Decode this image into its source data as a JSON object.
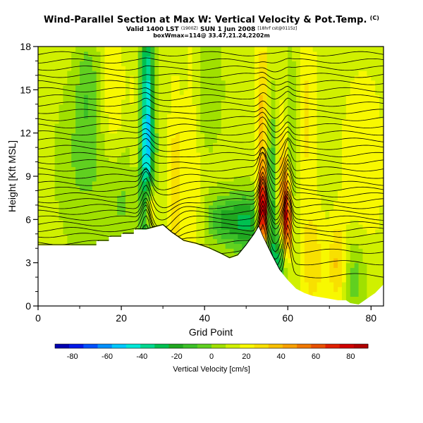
{
  "title": {
    "main": "Wind-Parallel Section at Max W: Vertical Velocity & Pot.Temp.",
    "copyright": "(C)",
    "valid": "Valid 1400 LST",
    "valid_utc": "(1900Z)",
    "valid_date": "SUN 1 Jun 2008",
    "valid_run": "[18hrf cst@0115z]",
    "box_info": "boxWmax=114@ 33.47,21.24,2202m"
  },
  "chart_data": {
    "type": "heatmap",
    "xlabel": "Grid Point",
    "ylabel": "Height [Kft MSL]",
    "xlim": [
      0,
      83
    ],
    "ylim": [
      0,
      18
    ],
    "x_ticks": [
      0,
      20,
      40,
      60,
      80
    ],
    "y_ticks": [
      0,
      3,
      6,
      9,
      12,
      15,
      18
    ],
    "terrain": [
      [
        0,
        4.2
      ],
      [
        9,
        4.2
      ],
      [
        14,
        4.2
      ],
      [
        14,
        4.5
      ],
      [
        17,
        4.5
      ],
      [
        17,
        4.8
      ],
      [
        20,
        4.8
      ],
      [
        20,
        5.0
      ],
      [
        23,
        5.0
      ],
      [
        23,
        5.3
      ],
      [
        26,
        5.3
      ],
      [
        30,
        5.6
      ],
      [
        32,
        5.1
      ],
      [
        35,
        4.5
      ],
      [
        38,
        4.3
      ],
      [
        41,
        4.0
      ],
      [
        44,
        3.6
      ],
      [
        46,
        3.3
      ],
      [
        48,
        3.5
      ],
      [
        50,
        4.2
      ],
      [
        52,
        5.0
      ],
      [
        53,
        5.5
      ],
      [
        54,
        4.8
      ],
      [
        56,
        3.6
      ],
      [
        58,
        2.5
      ],
      [
        60,
        1.8
      ],
      [
        62,
        1.2
      ],
      [
        64,
        0.9
      ],
      [
        66,
        0.7
      ],
      [
        68,
        0.6
      ],
      [
        70,
        0.5
      ],
      [
        72,
        0.4
      ],
      [
        74,
        0.4
      ],
      [
        75,
        0.2
      ],
      [
        77,
        0.1
      ],
      [
        79,
        0.5
      ],
      [
        81,
        0.9
      ],
      [
        82,
        1.2
      ],
      [
        83,
        1.5
      ]
    ],
    "w_features": [
      {
        "x": 26,
        "y": 11.5,
        "wx": 1.3,
        "wy": 7,
        "w": -75
      },
      {
        "x": 26.8,
        "y": 6.8,
        "wx": 1.0,
        "wy": 1.5,
        "w": 50
      },
      {
        "x": 24.5,
        "y": 12,
        "wx": 1.3,
        "wy": 6,
        "w": 22
      },
      {
        "x": 33,
        "y": 8,
        "wx": 1.2,
        "wy": 5,
        "w": 18
      },
      {
        "x": 37,
        "y": 12,
        "wx": 1.5,
        "wy": 6,
        "w": 14
      },
      {
        "x": 50,
        "y": 5.8,
        "wx": 3,
        "wy": 1.5,
        "w": -38
      },
      {
        "x": 44,
        "y": 6,
        "wx": 2.5,
        "wy": 1.2,
        "w": -25
      },
      {
        "x": 20,
        "y": 7.5,
        "wx": 4,
        "wy": 3,
        "w": -14
      },
      {
        "x": 10,
        "y": 10,
        "wx": 4,
        "wy": 4,
        "w": -12
      },
      {
        "x": 54,
        "y": 6.5,
        "wx": 0.8,
        "wy": 1.8,
        "w": 85
      },
      {
        "x": 54,
        "y": 12,
        "wx": 1.0,
        "wy": 5,
        "w": 28
      },
      {
        "x": 56,
        "y": 8,
        "wx": 1.0,
        "wy": 4,
        "w": -32
      },
      {
        "x": 59,
        "y": 8,
        "wx": 0.9,
        "wy": 3.5,
        "w": 35
      },
      {
        "x": 60,
        "y": 5.8,
        "wx": 0.8,
        "wy": 2,
        "w": 55
      },
      {
        "x": 61,
        "y": 11,
        "wx": 1.2,
        "wy": 5,
        "w": -20
      },
      {
        "x": 64,
        "y": 13,
        "wx": 2,
        "wy": 5,
        "w": 15
      },
      {
        "x": 58,
        "y": 3,
        "wx": 1.5,
        "wy": 1.5,
        "w": -40
      },
      {
        "x": 66,
        "y": 3,
        "wx": 2,
        "wy": 2.5,
        "w": 18
      },
      {
        "x": 72,
        "y": 3,
        "wx": 1.5,
        "wy": 2,
        "w": 22
      },
      {
        "x": 76,
        "y": 2,
        "wx": 2,
        "wy": 2,
        "w": -18
      },
      {
        "x": 18,
        "y": 14,
        "wx": 2,
        "wy": 4,
        "w": 12
      },
      {
        "x": 12,
        "y": 15,
        "wx": 2,
        "wy": 3,
        "w": -15
      },
      {
        "x": 40,
        "y": 15,
        "wx": 3,
        "wy": 3,
        "w": -12
      },
      {
        "x": 78,
        "y": 10,
        "wx": 4,
        "wy": 5,
        "w": 10
      }
    ],
    "theta_levels": [
      2.1,
      3.0,
      3.8,
      4.4,
      4.9,
      5.3,
      5.7,
      6.1,
      6.5,
      6.9,
      7.3,
      7.7,
      8.1,
      8.5,
      9.0,
      9.5,
      10.0,
      10.5,
      11.0,
      11.5,
      12.0,
      12.5,
      13.0,
      13.5,
      14.0,
      14.5,
      15.0,
      15.5,
      16.0,
      16.5,
      17.0,
      17.5
    ],
    "colorbar": {
      "label": "Vertical Velocity [cm/s]",
      "ticks": [
        -80,
        -60,
        -40,
        -20,
        0,
        20,
        40,
        60,
        80
      ],
      "colors": [
        "#0000b0",
        "#0018e8",
        "#0050ff",
        "#0090ff",
        "#00c8ff",
        "#00e8d8",
        "#00d890",
        "#00c050",
        "#20a820",
        "#3cc028",
        "#60d020",
        "#a0e000",
        "#d0f000",
        "#f8f800",
        "#f8e000",
        "#f8c000",
        "#f8a000",
        "#f07800",
        "#e85000",
        "#e02000",
        "#d00000",
        "#b00000"
      ]
    }
  }
}
